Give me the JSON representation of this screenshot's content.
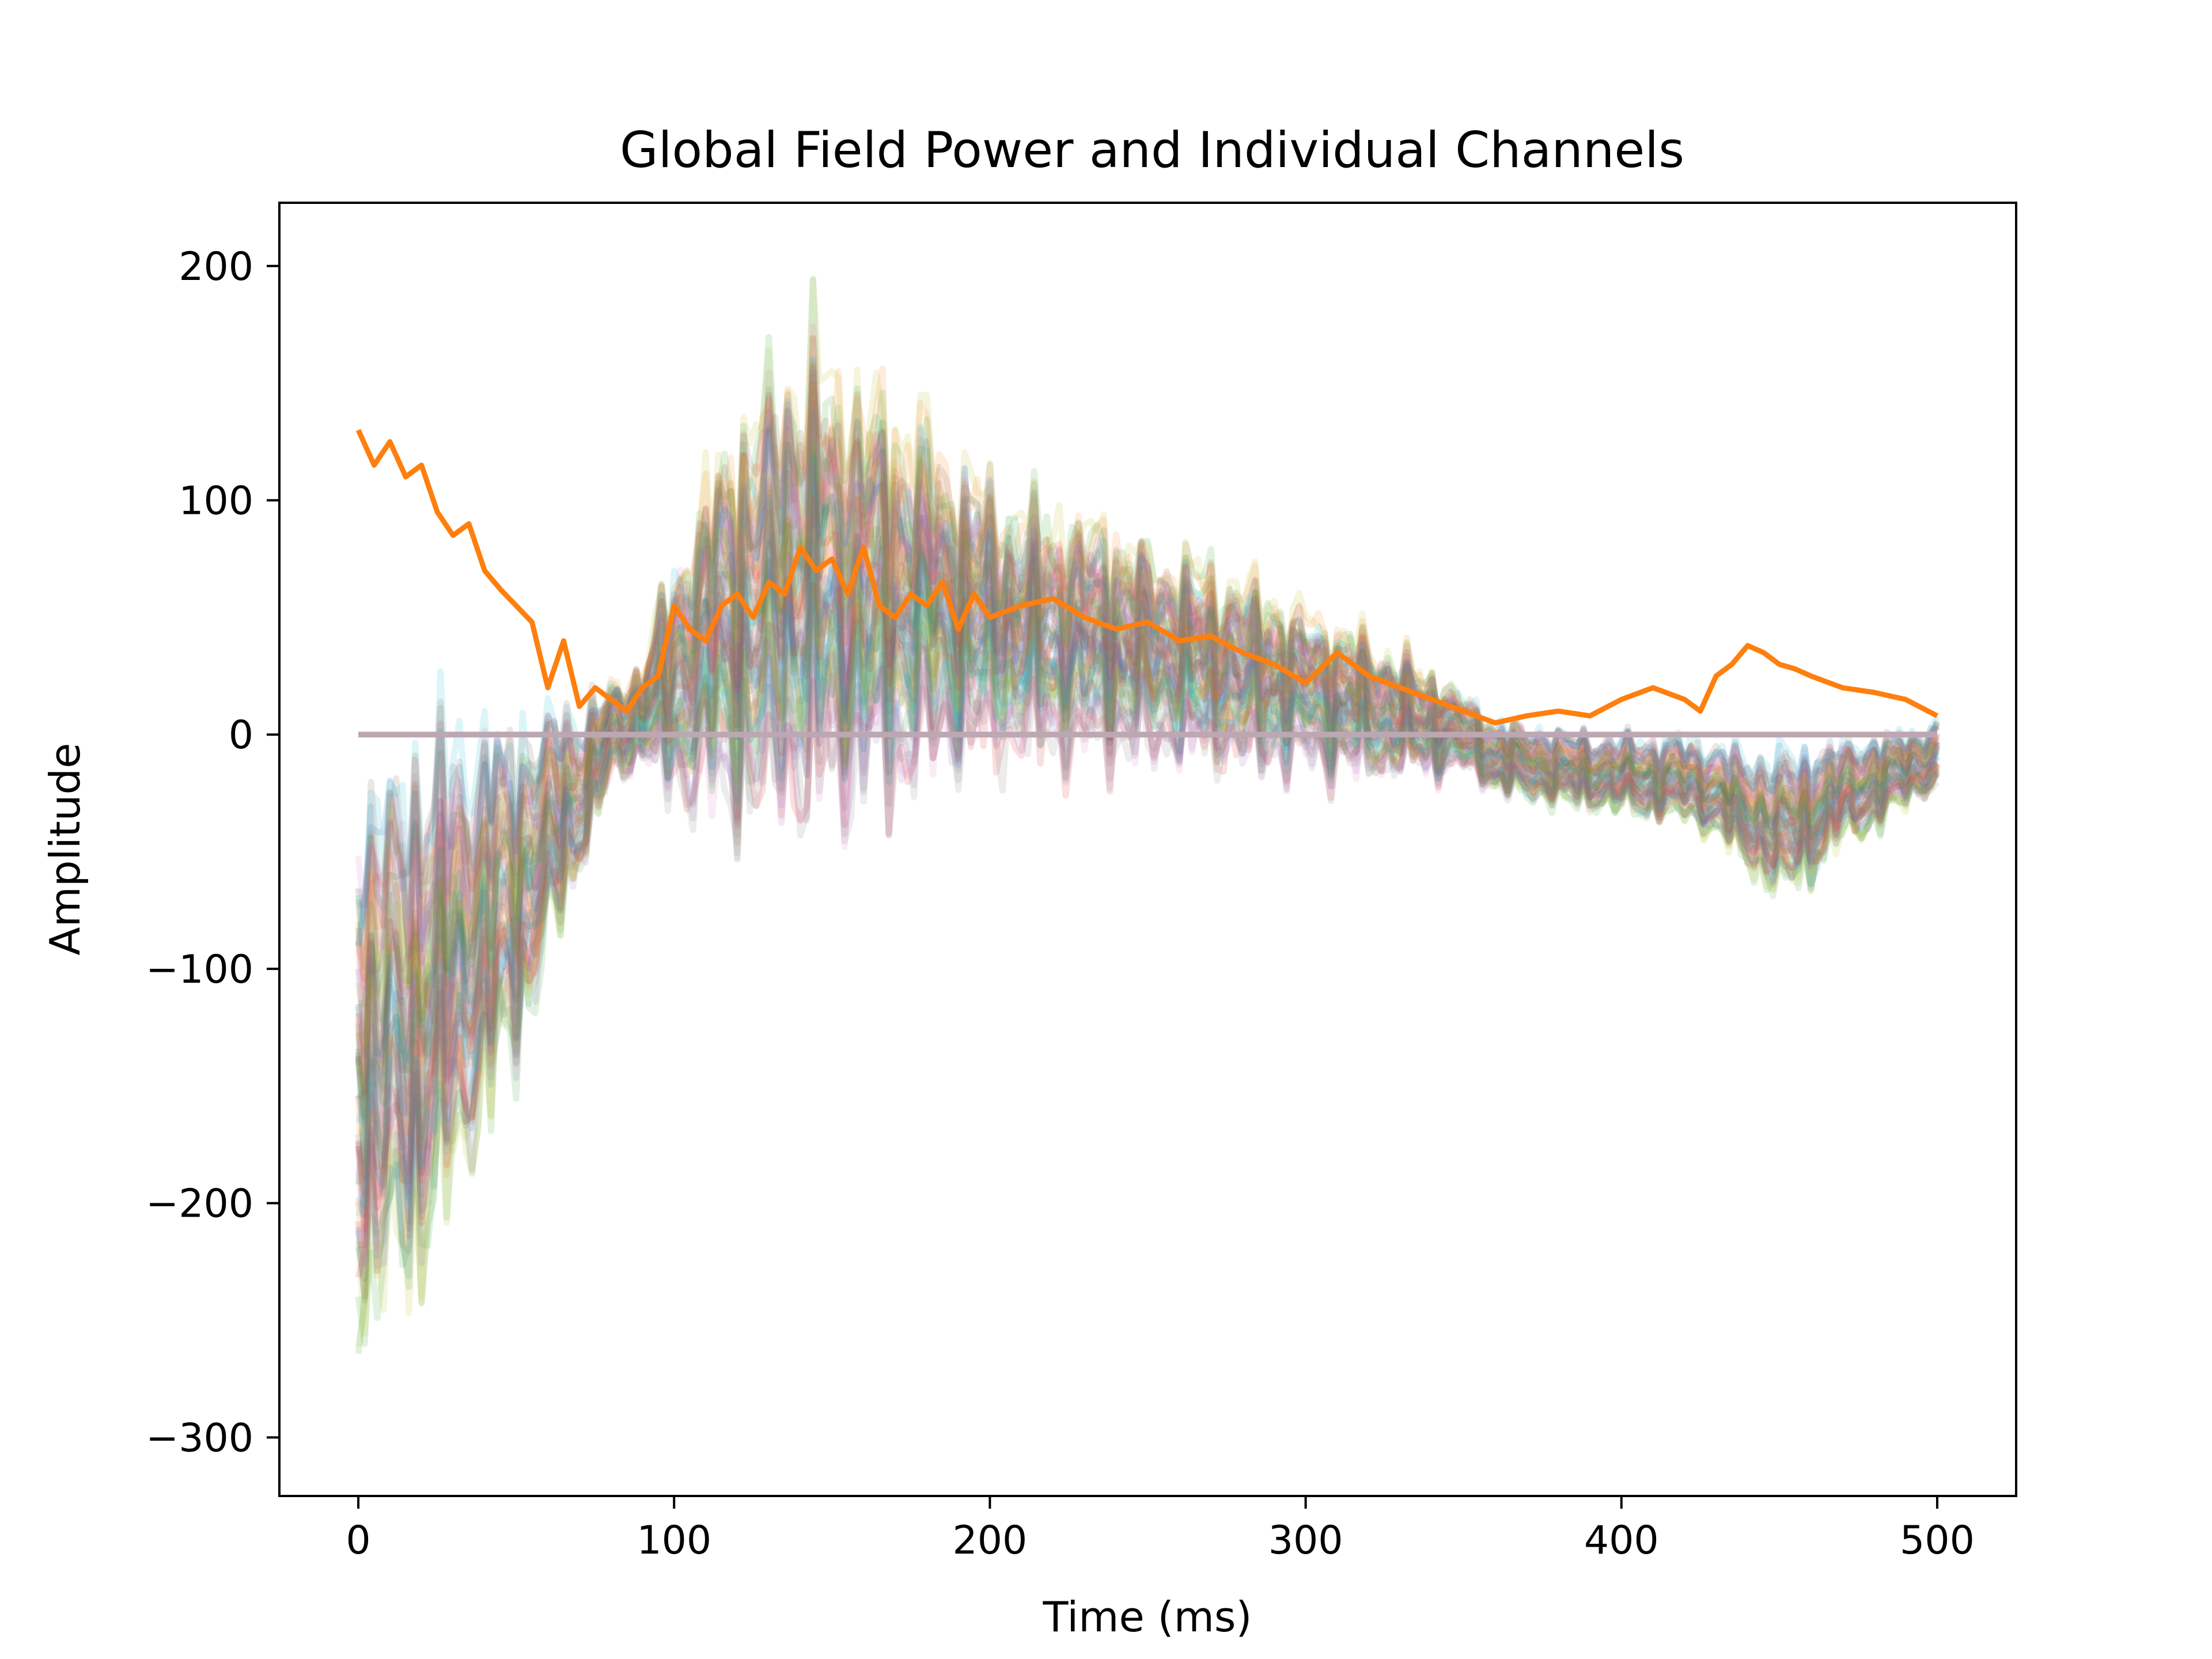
{
  "chart_data": {
    "type": "line",
    "title": "Global Field Power and Individual Channels",
    "xlabel": "Time (ms)",
    "ylabel": "Amplitude",
    "xlim": [
      -25,
      525
    ],
    "ylim": [
      -325,
      227
    ],
    "grid": false,
    "xticks": [
      {
        "value": 0,
        "label": "0"
      },
      {
        "value": 100,
        "label": "100"
      },
      {
        "value": 200,
        "label": "200"
      },
      {
        "value": 300,
        "label": "300"
      },
      {
        "value": 400,
        "label": "400"
      },
      {
        "value": 500,
        "label": "500"
      }
    ],
    "yticks": [
      {
        "value": 200,
        "label": "200"
      },
      {
        "value": 100,
        "label": "100"
      },
      {
        "value": 0,
        "label": "0"
      },
      {
        "value": -100,
        "label": "−100"
      },
      {
        "value": -200,
        "label": "−200"
      },
      {
        "value": -300,
        "label": "−300"
      }
    ],
    "channels": {
      "count": 60,
      "opacity": 0.15,
      "color_cycle": [
        "#1f77b4",
        "#ff7f0e",
        "#2ca02c",
        "#d62728",
        "#9467bd",
        "#8c564b",
        "#e377c2",
        "#7f7f7f",
        "#bcbd22",
        "#17becf"
      ],
      "envelope": {
        "x": [
          0,
          10,
          20,
          30,
          40,
          50,
          60,
          70,
          80,
          90,
          100,
          110,
          120,
          130,
          140,
          150,
          160,
          170,
          180,
          190,
          200,
          220,
          240,
          260,
          280,
          300,
          320,
          340,
          350,
          360,
          380,
          400,
          420,
          430,
          440,
          450,
          460,
          470,
          480,
          490,
          500
        ],
        "mean": [
          -140,
          -135,
          -120,
          -105,
          -85,
          -70,
          -45,
          -25,
          0,
          10,
          25,
          40,
          50,
          60,
          70,
          65,
          62,
          60,
          58,
          55,
          50,
          45,
          40,
          35,
          28,
          20,
          12,
          5,
          0,
          -10,
          -15,
          -18,
          -20,
          -25,
          -35,
          -40,
          -35,
          -25,
          -22,
          -15,
          -10
        ],
        "spread": [
          75,
          70,
          65,
          58,
          50,
          42,
          35,
          22,
          15,
          14,
          35,
          45,
          55,
          60,
          65,
          62,
          58,
          52,
          48,
          42,
          38,
          34,
          32,
          28,
          26,
          22,
          20,
          15,
          12,
          10,
          10,
          10,
          11,
          12,
          14,
          18,
          16,
          14,
          12,
          10,
          10
        ]
      }
    },
    "series": [
      {
        "name": "",
        "color": "#ff7f0e",
        "x": [
          0,
          5,
          10,
          15,
          20,
          25,
          30,
          35,
          40,
          45,
          50,
          55,
          60,
          65,
          70,
          75,
          80,
          85,
          90,
          95,
          100,
          105,
          110,
          115,
          120,
          125,
          130,
          135,
          140,
          145,
          150,
          155,
          160,
          165,
          170,
          175,
          180,
          185,
          190,
          195,
          200,
          210,
          220,
          230,
          240,
          250,
          260,
          270,
          280,
          290,
          300,
          310,
          320,
          330,
          340,
          350,
          360,
          370,
          380,
          390,
          400,
          410,
          420,
          425,
          430,
          435,
          440,
          445,
          450,
          455,
          460,
          470,
          480,
          490,
          500
        ],
        "y": [
          130,
          115,
          125,
          110,
          115,
          95,
          85,
          90,
          70,
          62,
          55,
          48,
          20,
          40,
          12,
          20,
          15,
          10,
          20,
          25,
          55,
          45,
          40,
          55,
          60,
          50,
          65,
          60,
          80,
          70,
          75,
          60,
          80,
          55,
          50,
          60,
          55,
          65,
          45,
          60,
          50,
          55,
          58,
          50,
          45,
          48,
          40,
          42,
          35,
          30,
          22,
          35,
          25,
          20,
          15,
          10,
          5,
          8,
          10,
          8,
          15,
          20,
          15,
          10,
          25,
          30,
          38,
          35,
          30,
          28,
          25,
          20,
          18,
          15,
          8
        ]
      }
    ],
    "baseline": {
      "value": 0,
      "color": "#bca7b3"
    }
  }
}
